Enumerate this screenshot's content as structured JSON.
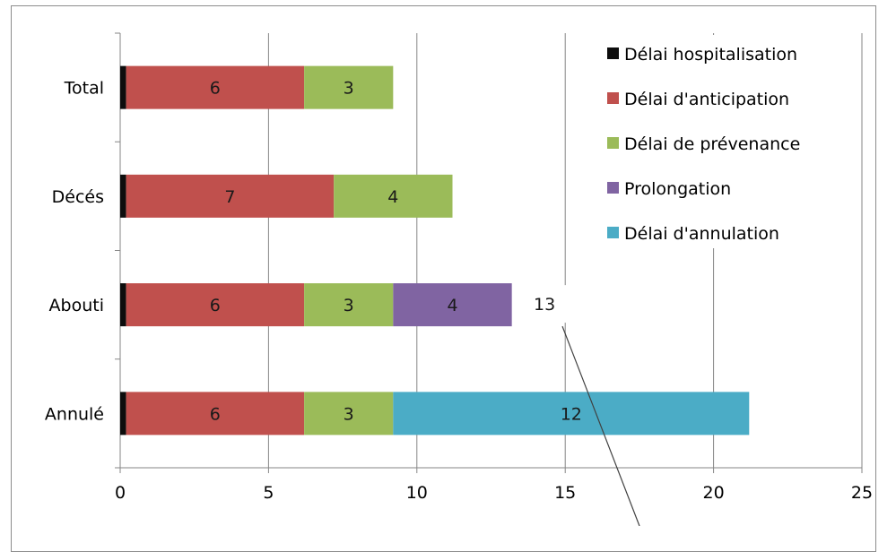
{
  "chart_data": {
    "type": "bar",
    "orientation": "horizontal",
    "stacked": true,
    "categories": [
      "Total",
      "Décés",
      "Abouti",
      "Annulé"
    ],
    "series": [
      {
        "name": "Délai hospitalisation",
        "color": "#0d0d0d",
        "values": [
          0.2,
          0.2,
          0.2,
          0.2
        ],
        "labels": [
          "",
          "",
          "",
          ""
        ]
      },
      {
        "name": "Délai d'anticipation",
        "color": "#c0504d",
        "values": [
          6,
          7,
          6,
          6
        ],
        "labels": [
          "6",
          "7",
          "6",
          "6"
        ]
      },
      {
        "name": "Délai de prévenance",
        "color": "#9bbb59",
        "values": [
          3,
          4,
          3,
          3
        ],
        "labels": [
          "3",
          "4",
          "3",
          "3"
        ]
      },
      {
        "name": "Prolongation",
        "color": "#8064a2",
        "values": [
          0,
          0,
          4,
          0
        ],
        "labels": [
          "",
          "",
          "4",
          ""
        ]
      },
      {
        "name": "Délai d'annulation",
        "color": "#4bacc6",
        "values": [
          0,
          0,
          0,
          12
        ],
        "labels": [
          "",
          "",
          "",
          "12"
        ]
      }
    ],
    "xlim": [
      0,
      25
    ],
    "xticks": [
      "0",
      "5",
      "10",
      "15",
      "20",
      "25"
    ],
    "grid": true,
    "legend": "top-right",
    "callout": {
      "text": "13",
      "category": "Abouti"
    }
  }
}
